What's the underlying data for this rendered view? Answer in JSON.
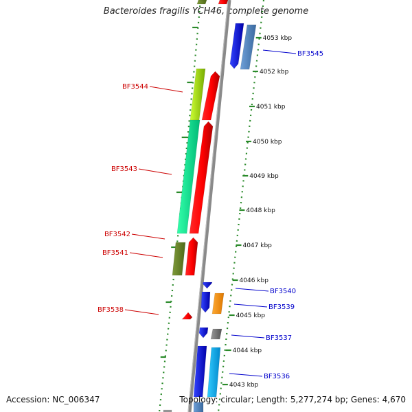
{
  "title": "Bacteroides fragilis YCH46, complete genome",
  "footer": {
    "accession": "Accession: NC_006347",
    "summary": "Topology: circular; Length: 5,277,274 bp; Genes: 4,670"
  },
  "colors": {
    "backbone": "#8a8a8a",
    "tick": "#2a8a2a",
    "forward_label": "#cc0000",
    "reverse_label": "#0000cc"
  },
  "ticks": [
    {
      "label": "4053 kbp"
    },
    {
      "label": "4052 kbp"
    },
    {
      "label": "4051 kbp"
    },
    {
      "label": "4050 kbp"
    },
    {
      "label": "4049 kbp"
    },
    {
      "label": "4048 kbp"
    },
    {
      "label": "4047 kbp"
    },
    {
      "label": "4046 kbp"
    },
    {
      "label": "4045 kbp"
    },
    {
      "label": "4044 kbp"
    },
    {
      "label": "4043 kbp"
    }
  ],
  "genes": {
    "forward": [
      {
        "label": "BF3544"
      },
      {
        "label": "BF3543"
      },
      {
        "label": "BF3542"
      },
      {
        "label": "BF3541"
      },
      {
        "label": "BF3538"
      }
    ],
    "reverse": [
      {
        "label": "BF3545"
      },
      {
        "label": "BF3540"
      },
      {
        "label": "BF3539"
      },
      {
        "label": "BF3537"
      },
      {
        "label": "BF3536"
      }
    ]
  }
}
